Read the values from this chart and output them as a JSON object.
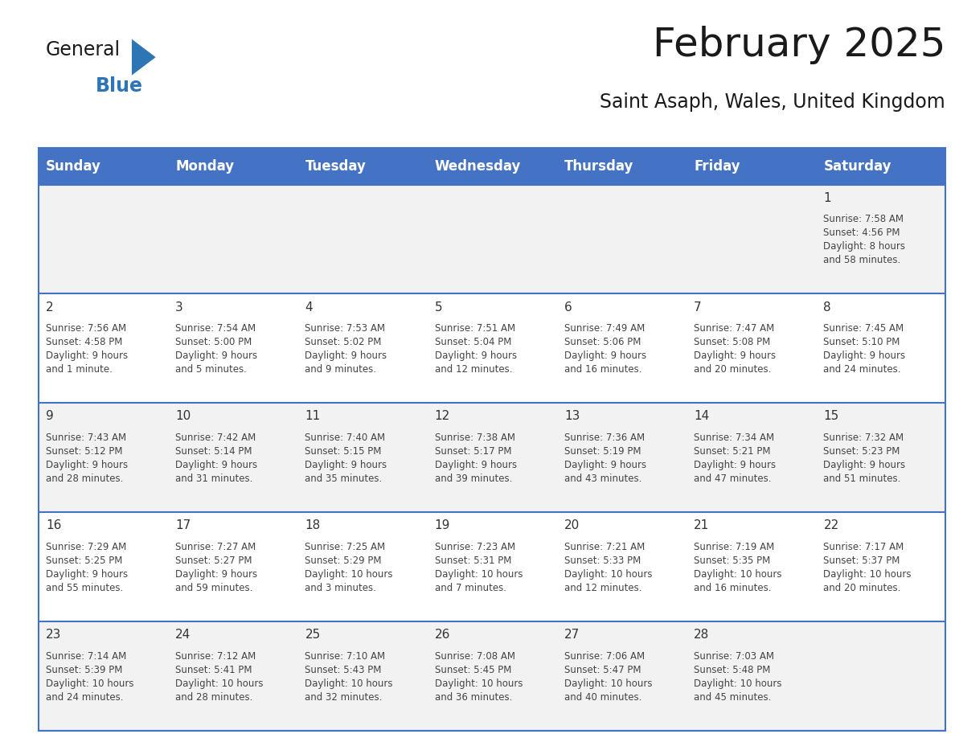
{
  "title": "February 2025",
  "subtitle": "Saint Asaph, Wales, United Kingdom",
  "days_of_week": [
    "Sunday",
    "Monday",
    "Tuesday",
    "Wednesday",
    "Thursday",
    "Friday",
    "Saturday"
  ],
  "header_bg": "#4472C4",
  "header_text_color": "#FFFFFF",
  "cell_bg_odd": "#F2F2F2",
  "cell_bg_even": "#FFFFFF",
  "border_color": "#4472C4",
  "text_color": "#444444",
  "day_num_color": "#333333",
  "title_color": "#1a1a1a",
  "subtitle_color": "#1a1a1a",
  "general_color": "#1a1a1a",
  "blue_color": "#2E75B6",
  "calendar_data": [
    {
      "day": 1,
      "row": 0,
      "col": 6,
      "sunrise": "7:58 AM",
      "sunset": "4:56 PM",
      "daylight": "8 hours\nand 58 minutes."
    },
    {
      "day": 2,
      "row": 1,
      "col": 0,
      "sunrise": "7:56 AM",
      "sunset": "4:58 PM",
      "daylight": "9 hours\nand 1 minute."
    },
    {
      "day": 3,
      "row": 1,
      "col": 1,
      "sunrise": "7:54 AM",
      "sunset": "5:00 PM",
      "daylight": "9 hours\nand 5 minutes."
    },
    {
      "day": 4,
      "row": 1,
      "col": 2,
      "sunrise": "7:53 AM",
      "sunset": "5:02 PM",
      "daylight": "9 hours\nand 9 minutes."
    },
    {
      "day": 5,
      "row": 1,
      "col": 3,
      "sunrise": "7:51 AM",
      "sunset": "5:04 PM",
      "daylight": "9 hours\nand 12 minutes."
    },
    {
      "day": 6,
      "row": 1,
      "col": 4,
      "sunrise": "7:49 AM",
      "sunset": "5:06 PM",
      "daylight": "9 hours\nand 16 minutes."
    },
    {
      "day": 7,
      "row": 1,
      "col": 5,
      "sunrise": "7:47 AM",
      "sunset": "5:08 PM",
      "daylight": "9 hours\nand 20 minutes."
    },
    {
      "day": 8,
      "row": 1,
      "col": 6,
      "sunrise": "7:45 AM",
      "sunset": "5:10 PM",
      "daylight": "9 hours\nand 24 minutes."
    },
    {
      "day": 9,
      "row": 2,
      "col": 0,
      "sunrise": "7:43 AM",
      "sunset": "5:12 PM",
      "daylight": "9 hours\nand 28 minutes."
    },
    {
      "day": 10,
      "row": 2,
      "col": 1,
      "sunrise": "7:42 AM",
      "sunset": "5:14 PM",
      "daylight": "9 hours\nand 31 minutes."
    },
    {
      "day": 11,
      "row": 2,
      "col": 2,
      "sunrise": "7:40 AM",
      "sunset": "5:15 PM",
      "daylight": "9 hours\nand 35 minutes."
    },
    {
      "day": 12,
      "row": 2,
      "col": 3,
      "sunrise": "7:38 AM",
      "sunset": "5:17 PM",
      "daylight": "9 hours\nand 39 minutes."
    },
    {
      "day": 13,
      "row": 2,
      "col": 4,
      "sunrise": "7:36 AM",
      "sunset": "5:19 PM",
      "daylight": "9 hours\nand 43 minutes."
    },
    {
      "day": 14,
      "row": 2,
      "col": 5,
      "sunrise": "7:34 AM",
      "sunset": "5:21 PM",
      "daylight": "9 hours\nand 47 minutes."
    },
    {
      "day": 15,
      "row": 2,
      "col": 6,
      "sunrise": "7:32 AM",
      "sunset": "5:23 PM",
      "daylight": "9 hours\nand 51 minutes."
    },
    {
      "day": 16,
      "row": 3,
      "col": 0,
      "sunrise": "7:29 AM",
      "sunset": "5:25 PM",
      "daylight": "9 hours\nand 55 minutes."
    },
    {
      "day": 17,
      "row": 3,
      "col": 1,
      "sunrise": "7:27 AM",
      "sunset": "5:27 PM",
      "daylight": "9 hours\nand 59 minutes."
    },
    {
      "day": 18,
      "row": 3,
      "col": 2,
      "sunrise": "7:25 AM",
      "sunset": "5:29 PM",
      "daylight": "10 hours\nand 3 minutes."
    },
    {
      "day": 19,
      "row": 3,
      "col": 3,
      "sunrise": "7:23 AM",
      "sunset": "5:31 PM",
      "daylight": "10 hours\nand 7 minutes."
    },
    {
      "day": 20,
      "row": 3,
      "col": 4,
      "sunrise": "7:21 AM",
      "sunset": "5:33 PM",
      "daylight": "10 hours\nand 12 minutes."
    },
    {
      "day": 21,
      "row": 3,
      "col": 5,
      "sunrise": "7:19 AM",
      "sunset": "5:35 PM",
      "daylight": "10 hours\nand 16 minutes."
    },
    {
      "day": 22,
      "row": 3,
      "col": 6,
      "sunrise": "7:17 AM",
      "sunset": "5:37 PM",
      "daylight": "10 hours\nand 20 minutes."
    },
    {
      "day": 23,
      "row": 4,
      "col": 0,
      "sunrise": "7:14 AM",
      "sunset": "5:39 PM",
      "daylight": "10 hours\nand 24 minutes."
    },
    {
      "day": 24,
      "row": 4,
      "col": 1,
      "sunrise": "7:12 AM",
      "sunset": "5:41 PM",
      "daylight": "10 hours\nand 28 minutes."
    },
    {
      "day": 25,
      "row": 4,
      "col": 2,
      "sunrise": "7:10 AM",
      "sunset": "5:43 PM",
      "daylight": "10 hours\nand 32 minutes."
    },
    {
      "day": 26,
      "row": 4,
      "col": 3,
      "sunrise": "7:08 AM",
      "sunset": "5:45 PM",
      "daylight": "10 hours\nand 36 minutes."
    },
    {
      "day": 27,
      "row": 4,
      "col": 4,
      "sunrise": "7:06 AM",
      "sunset": "5:47 PM",
      "daylight": "10 hours\nand 40 minutes."
    },
    {
      "day": 28,
      "row": 4,
      "col": 5,
      "sunrise": "7:03 AM",
      "sunset": "5:48 PM",
      "daylight": "10 hours\nand 45 minutes."
    }
  ],
  "num_rows": 5,
  "num_cols": 7,
  "fig_width": 11.88,
  "fig_height": 9.18
}
